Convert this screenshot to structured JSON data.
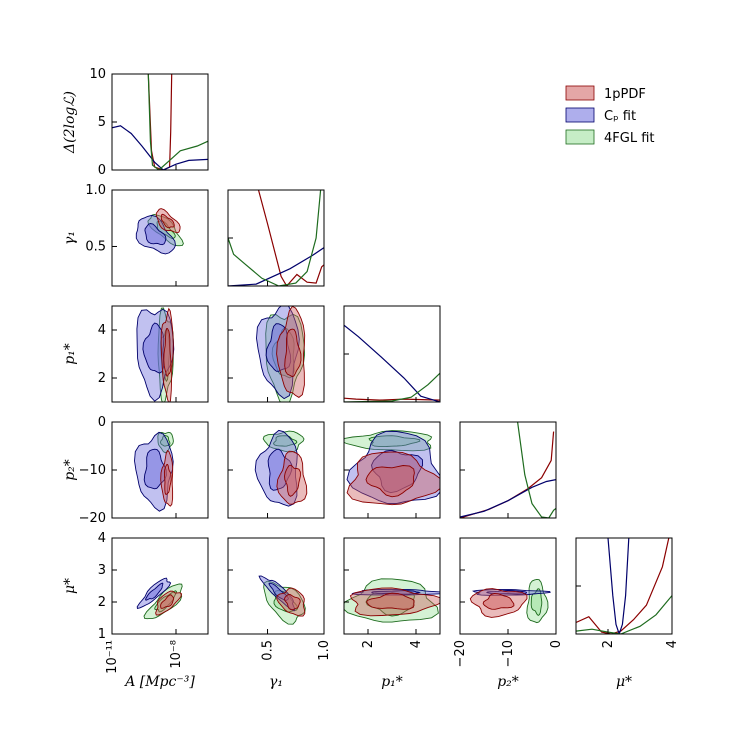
{
  "chart_data": {
    "type": "corner",
    "parameters": [
      {
        "id": "A",
        "label": "A  [Mpc⁻³]",
        "scale": "log",
        "range": [
          -11,
          -6.5
        ],
        "ticks": [
          {
            "v": -11,
            "label": "10⁻¹¹"
          },
          {
            "v": -8,
            "label": "10⁻⁸"
          }
        ]
      },
      {
        "id": "gamma1",
        "label": "γ₁",
        "range": [
          0.15,
          1.0
        ],
        "ticks": [
          {
            "v": 0.5,
            "label": "0.5"
          },
          {
            "v": 1.0,
            "label": "1.0"
          }
        ]
      },
      {
        "id": "p1",
        "label": "p₁*",
        "range": [
          1,
          5
        ],
        "ticks": [
          {
            "v": 2,
            "label": "2"
          },
          {
            "v": 4,
            "label": "4"
          }
        ]
      },
      {
        "id": "p2",
        "label": "p₂*",
        "range": [
          -20,
          0
        ],
        "ticks": [
          {
            "v": -20,
            "label": "−20"
          },
          {
            "v": -10,
            "label": "−10"
          },
          {
            "v": 0,
            "label": "0"
          }
        ]
      },
      {
        "id": "mu",
        "label": "μ*",
        "range": [
          1,
          4
        ],
        "ticks": [
          {
            "v": 2,
            "label": "2"
          },
          {
            "v": 4,
            "label": "4"
          }
        ]
      }
    ],
    "y_ticks": {
      "gamma1": [
        {
          "v": 0.5,
          "label": "0.5"
        },
        {
          "v": 1.0,
          "label": "1.0"
        }
      ],
      "p1": [
        {
          "v": 2,
          "label": "2"
        },
        {
          "v": 4,
          "label": "4"
        }
      ],
      "p2": [
        {
          "v": -20,
          "label": "−20"
        },
        {
          "v": -10,
          "label": "−10"
        },
        {
          "v": 0,
          "label": "0"
        }
      ],
      "mu": [
        {
          "v": 1,
          "label": "1"
        },
        {
          "v": 2,
          "label": "2"
        },
        {
          "v": 3,
          "label": "3"
        },
        {
          "v": 4,
          "label": "4"
        }
      ]
    },
    "profile_axis": {
      "label": "Δ(2logℒ)",
      "range": [
        0,
        10
      ],
      "ticks": [
        {
          "v": 0,
          "label": "0"
        },
        {
          "v": 5,
          "label": "5"
        },
        {
          "v": 10,
          "label": "10"
        }
      ]
    },
    "legend": {
      "position": "top-right",
      "entries": [
        {
          "name": "1pPDF",
          "fill": "#cd5c5c",
          "edge": "#8b0000"
        },
        {
          "name": "C_p fit",
          "display": "Cₚ fit",
          "fill": "#6b6bdc",
          "edge": "#00006b"
        },
        {
          "name": "4FGL fit",
          "fill": "#98df98",
          "edge": "#1e6b1e"
        }
      ]
    },
    "series": [
      {
        "name": "1pPDF",
        "color": "#8b0000",
        "fill": "#cd5c5c",
        "best_fit": {
          "A": -8.4,
          "gamma1": 0.72,
          "p1": 3.0,
          "p2": -12.0,
          "mu": 2.0
        }
      },
      {
        "name": "C_p fit",
        "color": "#00006b",
        "fill": "#6b6bdc",
        "best_fit": {
          "A": -9.0,
          "gamma1": 0.6,
          "p1": 3.2,
          "p2": -10.0,
          "mu": 2.3
        }
      },
      {
        "name": "4FGL fit",
        "color": "#1e6b1e",
        "fill": "#98df98",
        "best_fit": {
          "A": -8.5,
          "gamma1": 0.65,
          "p1": 3.0,
          "p2": -4.0,
          "mu": 2.0
        }
      }
    ],
    "profiles": {
      "A": {
        "1pPDF": [
          [
            -9.3,
            10
          ],
          [
            -9.15,
            2.0
          ],
          [
            -9.0,
            0.3
          ],
          [
            -8.6,
            0
          ],
          [
            -8.3,
            0.3
          ],
          [
            -8.25,
            4
          ],
          [
            -8.2,
            10
          ]
        ],
        "C_p fit": [
          [
            -11,
            4.4
          ],
          [
            -10.6,
            4.6
          ],
          [
            -10.1,
            3.8
          ],
          [
            -9.6,
            2.5
          ],
          [
            -9.0,
            0.8
          ],
          [
            -8.6,
            0
          ],
          [
            -8.0,
            0.6
          ],
          [
            -7.4,
            1.0
          ],
          [
            -6.5,
            1.1
          ]
        ],
        "4FGL fit": [
          [
            -9.3,
            10
          ],
          [
            -9.2,
            3
          ],
          [
            -9.1,
            0.5
          ],
          [
            -8.8,
            0
          ],
          [
            -8.3,
            1.0
          ],
          [
            -7.8,
            2.0
          ],
          [
            -7.0,
            2.5
          ],
          [
            -6.5,
            3.0
          ]
        ]
      },
      "gamma1": {
        "1pPDF": [
          [
            0.42,
            10
          ],
          [
            0.5,
            6.5
          ],
          [
            0.62,
            1.0
          ],
          [
            0.67,
            0
          ],
          [
            0.76,
            1.2
          ],
          [
            0.85,
            0.4
          ],
          [
            0.93,
            0.3
          ],
          [
            0.98,
            2.0
          ],
          [
            1.0,
            2.2
          ]
        ],
        "C_p fit": [
          [
            0.15,
            0
          ],
          [
            0.4,
            0.2
          ],
          [
            0.7,
            1.8
          ],
          [
            0.9,
            3.2
          ],
          [
            1.0,
            4.0
          ]
        ],
        "4FGL fit": [
          [
            0.15,
            5.0
          ],
          [
            0.2,
            3.3
          ],
          [
            0.3,
            2.3
          ],
          [
            0.45,
            0.8
          ],
          [
            0.6,
            0
          ],
          [
            0.75,
            0.3
          ],
          [
            0.85,
            1.5
          ],
          [
            0.93,
            5
          ],
          [
            0.97,
            10
          ]
        ]
      },
      "p1": {
        "1pPDF": [
          [
            1,
            0.4
          ],
          [
            1.5,
            0.3
          ],
          [
            2.5,
            0.2
          ],
          [
            3.5,
            0.3
          ],
          [
            5,
            0.2
          ]
        ],
        "C_p fit": [
          [
            1,
            8.0
          ],
          [
            1.6,
            6.8
          ],
          [
            2.5,
            4.8
          ],
          [
            3.5,
            2.5
          ],
          [
            4.2,
            0.6
          ],
          [
            5,
            0
          ]
        ],
        "4FGL fit": [
          [
            1,
            0
          ],
          [
            3.0,
            0.1
          ],
          [
            3.8,
            0.5
          ],
          [
            4.5,
            1.8
          ],
          [
            5,
            3.0
          ]
        ]
      },
      "p2": {
        "1pPDF": [
          [
            -20,
            0
          ],
          [
            -14,
            0.9
          ],
          [
            -10,
            1.8
          ],
          [
            -6,
            3.0
          ],
          [
            -3,
            4.2
          ],
          [
            -1,
            6.0
          ],
          [
            -0.5,
            9.0
          ]
        ],
        "C_p fit": [
          [
            -20,
            0.1
          ],
          [
            -15,
            0.7
          ],
          [
            -10,
            1.8
          ],
          [
            -5,
            3.2
          ],
          [
            -2,
            3.8
          ],
          [
            0,
            4.0
          ]
        ],
        "4FGL fit": [
          [
            -8,
            10
          ],
          [
            -6.5,
            4.5
          ],
          [
            -5,
            1.5
          ],
          [
            -3,
            0.1
          ],
          [
            -1.5,
            0
          ],
          [
            -0.5,
            0.8
          ],
          [
            0,
            1.0
          ]
        ]
      },
      "mu": {
        "1pPDF": [
          [
            1,
            1.2
          ],
          [
            1.4,
            1.8
          ],
          [
            1.8,
            0.2
          ],
          [
            2.1,
            0
          ],
          [
            2.4,
            0.3
          ],
          [
            2.8,
            1.5
          ],
          [
            3.2,
            3.0
          ],
          [
            3.7,
            7.0
          ],
          [
            3.9,
            10
          ]
        ],
        "C_p fit": [
          [
            2.0,
            10
          ],
          [
            2.15,
            4.0
          ],
          [
            2.25,
            1.0
          ],
          [
            2.35,
            0
          ],
          [
            2.45,
            1.0
          ],
          [
            2.55,
            4.0
          ],
          [
            2.65,
            10
          ]
        ],
        "4FGL fit": [
          [
            1,
            0.3
          ],
          [
            1.5,
            0.5
          ],
          [
            2.0,
            0.2
          ],
          [
            2.4,
            0
          ],
          [
            3.0,
            0.8
          ],
          [
            3.5,
            2.0
          ],
          [
            4,
            4.0
          ]
        ]
      }
    }
  }
}
